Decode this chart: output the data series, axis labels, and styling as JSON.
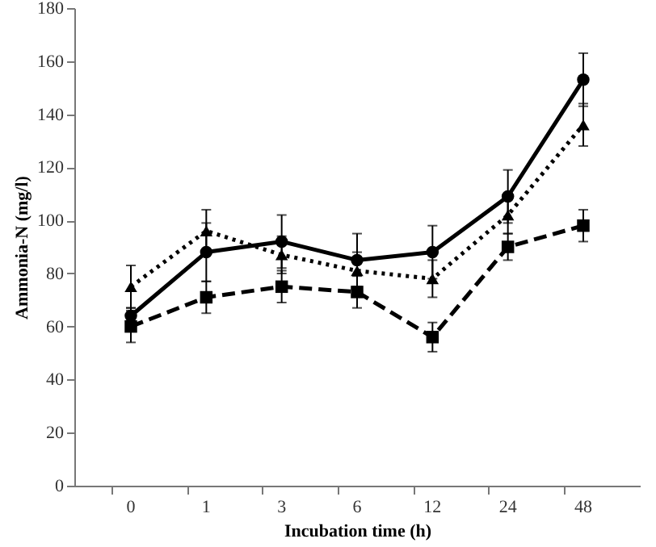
{
  "chart_data": {
    "type": "line",
    "xlabel": "Incubation time (h)",
    "ylabel": "Ammonia-N (mg/l)",
    "categories": [
      "0",
      "1",
      "3",
      "6",
      "12",
      "24",
      "48"
    ],
    "ylim": [
      0,
      180
    ],
    "yticks": [
      0,
      20,
      40,
      60,
      80,
      100,
      120,
      140,
      160,
      180
    ],
    "grid": false,
    "series": [
      {
        "color": "#000000",
        "marker": "circle",
        "line_style": "solid",
        "values": [
          64,
          88,
          92,
          85,
          88,
          109,
          153
        ],
        "errors": [
          3,
          11,
          10,
          10,
          10,
          10,
          10
        ]
      },
      {
        "color": "#000000",
        "marker": "triangle",
        "line_style": "dotted",
        "values": [
          75,
          96,
          87,
          81,
          78,
          102,
          136
        ],
        "errors": [
          8,
          8,
          7,
          7,
          7,
          7,
          8
        ]
      },
      {
        "color": "#000000",
        "marker": "square",
        "line_style": "dashed",
        "values": [
          60,
          71,
          75,
          73,
          56,
          90,
          98
        ],
        "errors": [
          6,
          6,
          6,
          6,
          5.5,
          5,
          6
        ]
      }
    ]
  }
}
